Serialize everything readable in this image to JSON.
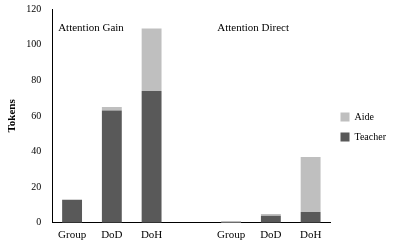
{
  "chart_data": {
    "type": "bar",
    "categories": [
      "Group",
      "DoD",
      "DoH",
      null,
      "Group",
      "DoD",
      "DoH"
    ],
    "series": [
      {
        "name": "Teacher",
        "color": "#595959",
        "values": [
          13,
          63,
          74,
          null,
          0,
          4,
          6
        ]
      },
      {
        "name": "Aide",
        "color": "#bfbfbf",
        "values": [
          0,
          2,
          35,
          null,
          1,
          1,
          31
        ]
      }
    ],
    "y_label": "Tokens",
    "annotations": [
      "Attention Gain",
      "Attention Direct"
    ],
    "ylim": [
      0,
      120
    ],
    "yticks": [
      0,
      20,
      40,
      60,
      80,
      100,
      120
    ],
    "stacked": true,
    "grid": false,
    "legend": "right"
  }
}
